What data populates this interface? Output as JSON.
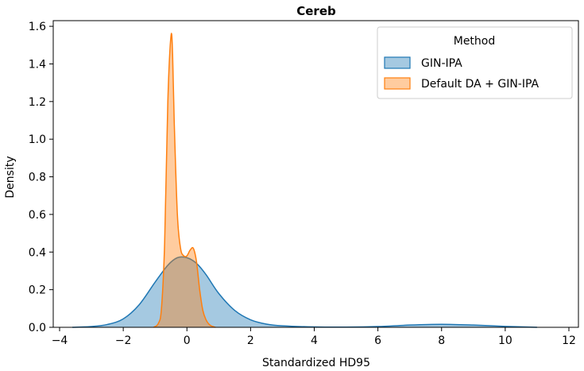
{
  "chart_data": {
    "type": "area",
    "title": "Cereb",
    "xlabel": "Standardized HD95",
    "ylabel": "Density",
    "xlim": [
      -4.2,
      12.3
    ],
    "ylim": [
      0,
      1.63
    ],
    "xticks": [
      -4,
      -2,
      0,
      2,
      4,
      6,
      8,
      10,
      12
    ],
    "xtick_labels": [
      "−4",
      "−2",
      "0",
      "2",
      "4",
      "6",
      "8",
      "10",
      "12"
    ],
    "yticks": [
      0.0,
      0.2,
      0.4,
      0.6,
      0.8,
      1.0,
      1.2,
      1.4,
      1.6
    ],
    "ytick_labels": [
      "0.0",
      "0.2",
      "0.4",
      "0.6",
      "0.8",
      "1.0",
      "1.2",
      "1.4",
      "1.6"
    ],
    "grid": false,
    "legend": {
      "title": "Method",
      "position": "top-right"
    },
    "series": [
      {
        "name": "GIN-IPA",
        "color": "#1f77b4",
        "x": [
          -3.6,
          -3.0,
          -2.5,
          -2.0,
          -1.5,
          -1.0,
          -0.6,
          -0.3,
          0.0,
          0.3,
          0.6,
          1.0,
          1.5,
          2.0,
          2.5,
          3.0,
          4.0,
          5.0,
          6.0,
          7.0,
          8.0,
          9.0,
          10.0,
          11.0
        ],
        "y": [
          0.0,
          0.004,
          0.015,
          0.045,
          0.12,
          0.24,
          0.33,
          0.37,
          0.37,
          0.34,
          0.28,
          0.18,
          0.09,
          0.04,
          0.017,
          0.008,
          0.002,
          0.001,
          0.004,
          0.012,
          0.016,
          0.012,
          0.005,
          0.0
        ]
      },
      {
        "name": "Default DA + GIN-IPA",
        "color": "#ff7f0e",
        "x": [
          -1.05,
          -0.9,
          -0.8,
          -0.7,
          -0.6,
          -0.5,
          -0.45,
          -0.4,
          -0.3,
          -0.2,
          -0.1,
          0.0,
          0.1,
          0.2,
          0.3,
          0.4,
          0.5,
          0.6,
          0.7,
          0.8,
          0.9
        ],
        "y": [
          0.0,
          0.02,
          0.1,
          0.45,
          1.2,
          1.55,
          1.45,
          1.1,
          0.6,
          0.42,
          0.38,
          0.38,
          0.41,
          0.42,
          0.35,
          0.2,
          0.09,
          0.04,
          0.015,
          0.005,
          0.0
        ]
      }
    ]
  }
}
